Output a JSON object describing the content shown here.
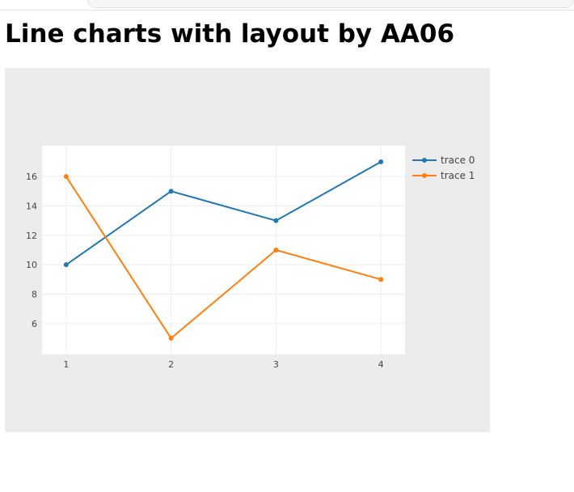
{
  "page": {
    "title": "Line charts with layout by AA06"
  },
  "chart_data": {
    "type": "line",
    "x": [
      1,
      2,
      3,
      4
    ],
    "xticks": [
      1,
      2,
      3,
      4
    ],
    "yticks": [
      6,
      8,
      10,
      12,
      14,
      16
    ],
    "xlim": [
      0.77,
      4.23
    ],
    "ylim": [
      3.9,
      18.1
    ],
    "grid": true,
    "legend_position": "top-right",
    "paper_color": "#ececec",
    "plot_color": "#ffffff",
    "grid_color": "#eeeeee",
    "series": [
      {
        "name": "trace 0",
        "color": "#1f77b4",
        "values": [
          10,
          15,
          13,
          17
        ]
      },
      {
        "name": "trace 1",
        "color": "#ff7f0e",
        "values": [
          16,
          5,
          11,
          9
        ]
      }
    ]
  }
}
